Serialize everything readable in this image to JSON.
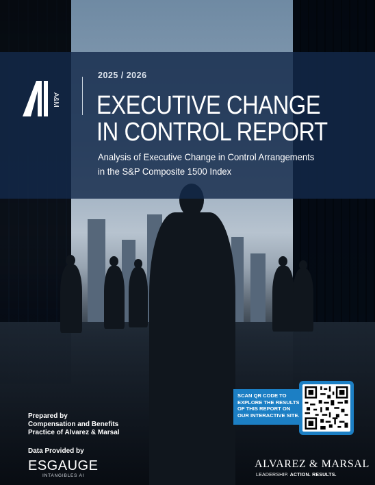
{
  "report": {
    "year": "2025 / 2026",
    "title_line1": "EXECUTIVE CHANGE",
    "title_line2": "IN CONTROL REPORT",
    "subtitle_line1": "Analysis of Executive Change in Control Arrangements",
    "subtitle_line2": "in the S&P Composite 1500 Index"
  },
  "logo": {
    "mark_text": "A&M"
  },
  "qr": {
    "label": "SCAN QR CODE TO EXPLORE THE RESULTS OF THIS REPORT ON OUR INTERACTIVE SITE."
  },
  "footer": {
    "prepared_by_line1": "Prepared by",
    "prepared_by_line2": "Compensation and Benefits",
    "prepared_by_line3": "Practice of Alvarez & Marsal",
    "data_provided_by": "Data Provided by",
    "data_provider_name": "ESGAUGE",
    "data_provider_sub": "INTANGIBLES AI",
    "firm_name": "ALVAREZ & MARSAL",
    "tagline_part1": "LEADERSHIP. ",
    "tagline_part2": "ACTION. RESULTS."
  },
  "colors": {
    "band": "#132a4a",
    "accent_blue": "#1c7fc4"
  }
}
